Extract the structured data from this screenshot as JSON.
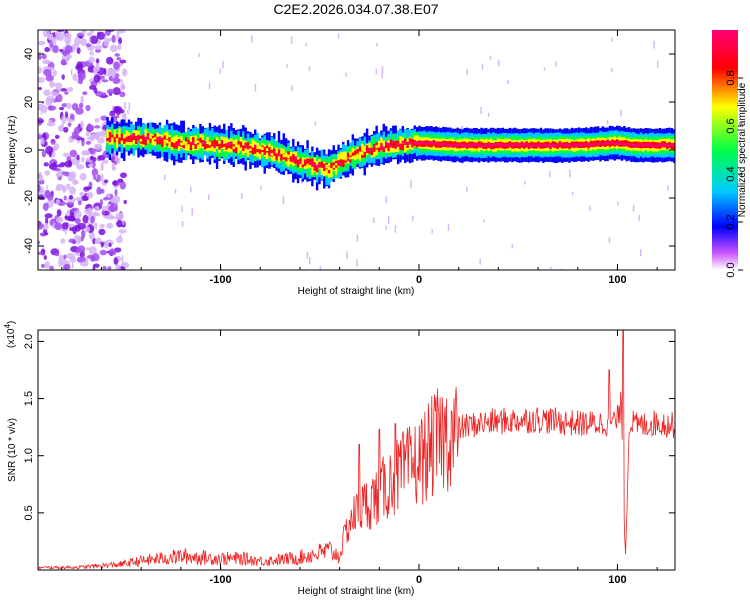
{
  "figure": {
    "title": "C2E2.2026.034.07.38.E07"
  },
  "chart_data": [
    {
      "type": "heatmap",
      "title": "C2E2.2026.034.07.38.E07",
      "xlabel": "Height of straight line (km)",
      "ylabel": "Frequency (Hz)",
      "xlim": [
        -192,
        129
      ],
      "ylim": [
        -50,
        50
      ],
      "x_ticks": [
        -100,
        0,
        100
      ],
      "x_tick_labels": [
        "-100",
        "0",
        "100"
      ],
      "y_ticks": [
        40,
        20,
        0,
        -20,
        -40
      ],
      "y_tick_labels": [
        "40",
        "20",
        "0",
        "-20",
        "-40"
      ],
      "colorbar": {
        "label": "Normalized spectral amplitude",
        "range": [
          0,
          1
        ],
        "ticks": [
          0.0,
          0.2,
          0.4,
          0.6,
          0.8
        ],
        "tick_labels": [
          "0.0",
          "0.2",
          "0.4",
          "0.6",
          "0.8"
        ],
        "colormap": [
          "#ffffff",
          "#cc55ff",
          "#0000ff",
          "#00ccff",
          "#00ff44",
          "#ffff00",
          "#ff0000",
          "#ff0077"
        ]
      },
      "ridge": {
        "x": [
          -157,
          -140,
          -120,
          -100,
          -85,
          -70,
          -60,
          -50,
          -45,
          -40,
          -30,
          -20,
          -15,
          0,
          20,
          50,
          80,
          100,
          110,
          129
        ],
        "frequency": [
          5,
          5,
          3,
          2,
          1,
          -2,
          -5,
          -7,
          -8,
          -5,
          -1,
          1,
          2,
          3,
          2,
          2,
          2,
          3,
          2,
          2
        ],
        "peak_amplitude": 0.95
      },
      "noise_region_x": [
        -192,
        -148
      ]
    },
    {
      "type": "line",
      "xlabel": "Height of straight line (km)",
      "ylabel": "SNR (10 * v/v)",
      "y_scale_label": "(x10",
      "y_scale_exponent": "4",
      "xlim": [
        -192,
        129
      ],
      "ylim": [
        0,
        21000
      ],
      "x_ticks": [
        -100,
        0,
        100
      ],
      "x_tick_labels": [
        "-100",
        "0",
        "100"
      ],
      "y_ticks": [
        5000,
        10000,
        15000,
        20000
      ],
      "y_tick_labels": [
        "0.5",
        "1.0",
        "1.5",
        "2.0"
      ],
      "series": [
        {
          "name": "SNR",
          "color": "#ee2222",
          "x": [
            -192,
            -170,
            -150,
            -140,
            -130,
            -120,
            -110,
            -100,
            -90,
            -80,
            -70,
            -60,
            -55,
            -50,
            -45,
            -40,
            -38,
            -35,
            -30,
            -25,
            -20,
            -15,
            -10,
            -5,
            0,
            5,
            10,
            20,
            30,
            40,
            50,
            60,
            70,
            80,
            90,
            95,
            100,
            102,
            104,
            106,
            110,
            120,
            129
          ],
          "values": [
            200,
            250,
            500,
            800,
            1000,
            1200,
            1100,
            1000,
            1000,
            800,
            900,
            1100,
            1300,
            1500,
            1700,
            1200,
            2800,
            4500,
            5500,
            6300,
            7000,
            8000,
            8800,
            9400,
            10000,
            11000,
            12000,
            12800,
            13200,
            13400,
            13500,
            13600,
            13400,
            13200,
            13200,
            13300,
            13500,
            15000,
            800,
            13500,
            13000,
            13300,
            13000
          ],
          "peaks": [
            {
              "x": 103,
              "value": 21000
            },
            {
              "x": 96,
              "value": 17500
            },
            {
              "x": -30,
              "value": 11000
            },
            {
              "x": -20,
              "value": 12300
            },
            {
              "x": -12,
              "value": 12800
            }
          ]
        }
      ]
    }
  ]
}
